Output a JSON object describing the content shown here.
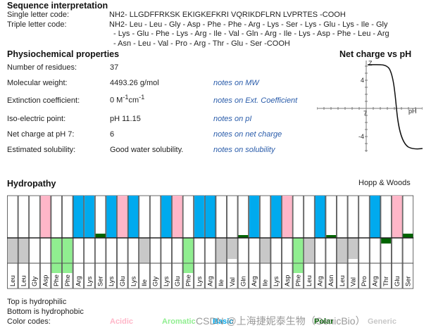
{
  "sequence": {
    "title": "Sequence interpretation",
    "single_label": "Single letter code:",
    "single_value": "NH2- LLGDFFRKSK EKIGKEFKRI VQRIKDFLRN LVPRTES -COOH",
    "triple_label": "Triple letter code:",
    "triple_lines": [
      "NH2- Leu - Leu - Gly - Asp - Phe - Phe - Arg - Lys - Ser - Lys - Glu - Lys - Ile - Gly",
      "- Lys - Glu - Phe - Lys - Arg - Ile - Val - Gln - Arg - Ile - Lys - Asp - Phe - Leu - Arg",
      "- Asn - Leu - Val - Pro - Arg - Thr - Glu - Ser -COOH"
    ]
  },
  "properties": {
    "title": "Physiochemical properties",
    "rows": [
      {
        "label": "Number of residues:",
        "value": "37",
        "note": ""
      },
      {
        "label": "Molecular weight:",
        "value": "4493.26 g/mol",
        "note": "notes on MW"
      },
      {
        "label": "Extinction coefficient:",
        "value": "0 M",
        "value_sup1": "-1",
        "value_mid": "cm",
        "value_sup2": "-1",
        "note": "notes on Ext. Coefficient"
      },
      {
        "label": "Iso-electric point:",
        "value": "pH 11.15",
        "note": "notes on pI"
      },
      {
        "label": "Net charge at pH 7:",
        "value": "6",
        "note": "notes on net charge"
      },
      {
        "label": "Estimated solubility:",
        "value": "Good water solubility.",
        "note": "notes on solubility"
      }
    ]
  },
  "net_charge_chart": {
    "title": "Net charge vs pH",
    "y_axis_label": "Z",
    "x_axis_label": "pH",
    "y_ticks": [
      "4",
      "-4"
    ],
    "x_tick": "7"
  },
  "hydropathy": {
    "title": "Hydropathy",
    "method": "Hopp & Woods",
    "footer_top": "Top is hydrophilic",
    "footer_bottom": "Bottom is hydrophobic",
    "color_codes_label": "Color codes:",
    "legend": [
      {
        "name": "Acidic",
        "color": "#ffb6c8"
      },
      {
        "name": "Aromatic",
        "color": "#90ee90"
      },
      {
        "name": "Basic",
        "color": "#00aaee"
      },
      {
        "name": "Polar",
        "color": "#006400"
      },
      {
        "name": "Generic",
        "color": "#c8c8c8"
      }
    ],
    "watermark": "CSDN @上海捷妮泰生物（GenicBio）",
    "colors": {
      "acidic": "#ffb6c8",
      "aromatic": "#90ee90",
      "basic": "#00aaee",
      "polar": "#006400",
      "generic": "#c8c8c8"
    },
    "residues": [
      {
        "name": "Leu",
        "type": "generic",
        "value": -1.8
      },
      {
        "name": "Leu",
        "type": "generic",
        "value": -1.8
      },
      {
        "name": "Gly",
        "type": "generic",
        "value": 0.0
      },
      {
        "name": "Asp",
        "type": "acidic",
        "value": 3.0
      },
      {
        "name": "Phe",
        "type": "aromatic",
        "value": -2.5
      },
      {
        "name": "Phe",
        "type": "aromatic",
        "value": -2.5
      },
      {
        "name": "Arg",
        "type": "basic",
        "value": 3.0
      },
      {
        "name": "Lys",
        "type": "basic",
        "value": 3.0
      },
      {
        "name": "Ser",
        "type": "polar",
        "value": 0.3
      },
      {
        "name": "Lys",
        "type": "basic",
        "value": 3.0
      },
      {
        "name": "Glu",
        "type": "acidic",
        "value": 3.0
      },
      {
        "name": "Lys",
        "type": "basic",
        "value": 3.0
      },
      {
        "name": "Ile",
        "type": "generic",
        "value": -1.8
      },
      {
        "name": "Gly",
        "type": "generic",
        "value": 0.0
      },
      {
        "name": "Lys",
        "type": "basic",
        "value": 3.0
      },
      {
        "name": "Glu",
        "type": "acidic",
        "value": 3.0
      },
      {
        "name": "Phe",
        "type": "aromatic",
        "value": -2.5
      },
      {
        "name": "Lys",
        "type": "basic",
        "value": 3.0
      },
      {
        "name": "Arg",
        "type": "basic",
        "value": 3.0
      },
      {
        "name": "Ile",
        "type": "generic",
        "value": -1.8
      },
      {
        "name": "Val",
        "type": "generic",
        "value": -1.5
      },
      {
        "name": "Gln",
        "type": "polar",
        "value": 0.2
      },
      {
        "name": "Arg",
        "type": "basic",
        "value": 3.0
      },
      {
        "name": "Ile",
        "type": "generic",
        "value": -1.8
      },
      {
        "name": "Lys",
        "type": "basic",
        "value": 3.0
      },
      {
        "name": "Asp",
        "type": "acidic",
        "value": 3.0
      },
      {
        "name": "Phe",
        "type": "aromatic",
        "value": -2.5
      },
      {
        "name": "Leu",
        "type": "generic",
        "value": -1.8
      },
      {
        "name": "Arg",
        "type": "basic",
        "value": 3.0
      },
      {
        "name": "Asn",
        "type": "polar",
        "value": 0.2
      },
      {
        "name": "Leu",
        "type": "generic",
        "value": -1.8
      },
      {
        "name": "Val",
        "type": "generic",
        "value": -1.5
      },
      {
        "name": "Pro",
        "type": "generic",
        "value": 0.0
      },
      {
        "name": "Arg",
        "type": "basic",
        "value": 3.0
      },
      {
        "name": "Thr",
        "type": "polar",
        "value": -0.4
      },
      {
        "name": "Glu",
        "type": "acidic",
        "value": 3.0
      },
      {
        "name": "Ser",
        "type": "polar",
        "value": 0.3
      }
    ]
  }
}
